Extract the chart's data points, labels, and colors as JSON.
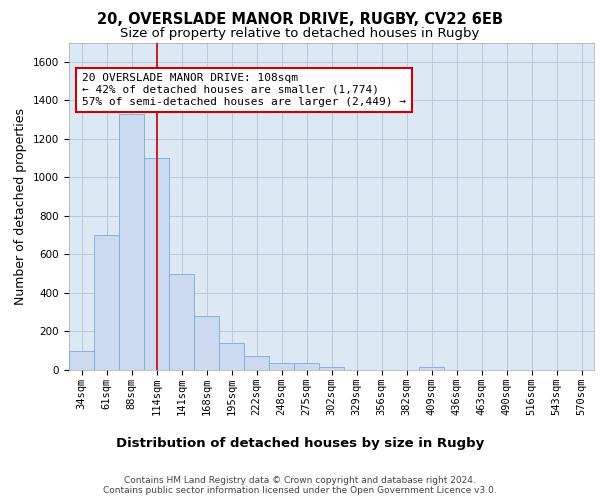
{
  "title_line1": "20, OVERSLADE MANOR DRIVE, RUGBY, CV22 6EB",
  "title_line2": "Size of property relative to detached houses in Rugby",
  "xlabel": "Distribution of detached houses by size in Rugby",
  "ylabel": "Number of detached properties",
  "categories": [
    "34sqm",
    "61sqm",
    "88sqm",
    "114sqm",
    "141sqm",
    "168sqm",
    "195sqm",
    "222sqm",
    "248sqm",
    "275sqm",
    "302sqm",
    "329sqm",
    "356sqm",
    "382sqm",
    "409sqm",
    "436sqm",
    "463sqm",
    "490sqm",
    "516sqm",
    "543sqm",
    "570sqm"
  ],
  "values": [
    100,
    700,
    1330,
    1100,
    500,
    280,
    140,
    75,
    35,
    35,
    15,
    0,
    0,
    0,
    15,
    0,
    0,
    0,
    0,
    0,
    0
  ],
  "bar_color": "#ccdaf0",
  "bar_edge_color": "#7aaad4",
  "vline_x": 3.0,
  "vline_color": "#cc0000",
  "annotation_text": "20 OVERSLADE MANOR DRIVE: 108sqm\n← 42% of detached houses are smaller (1,774)\n57% of semi-detached houses are larger (2,449) →",
  "annotation_box_color": "#cc0000",
  "ylim": [
    0,
    1700
  ],
  "yticks": [
    0,
    200,
    400,
    600,
    800,
    1000,
    1200,
    1400,
    1600
  ],
  "grid_color": "#b8c8dc",
  "background_color": "#dce8f4",
  "footnote": "Contains HM Land Registry data © Crown copyright and database right 2024.\nContains public sector information licensed under the Open Government Licence v3.0.",
  "title_fontsize": 10.5,
  "subtitle_fontsize": 9.5,
  "tick_fontsize": 7.5,
  "ylabel_fontsize": 9,
  "xlabel_fontsize": 9.5,
  "annotation_fontsize": 8,
  "footnote_fontsize": 6.5
}
